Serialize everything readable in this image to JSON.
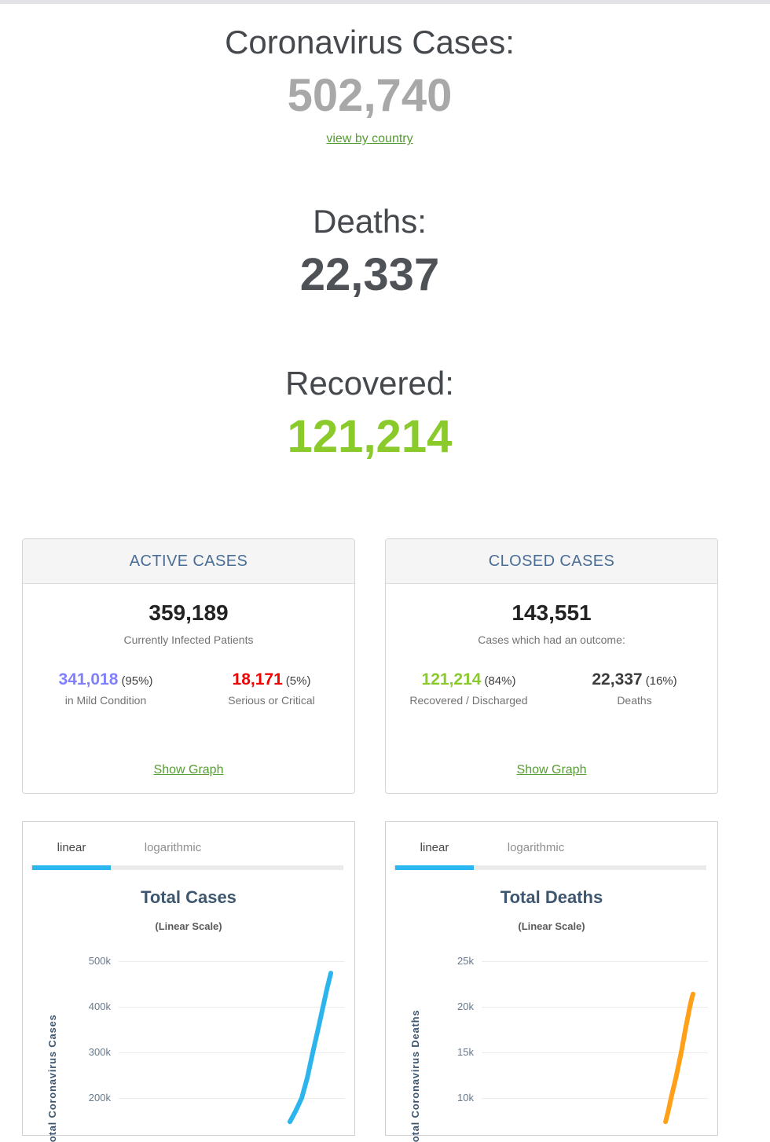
{
  "summary": {
    "cases": {
      "heading": "Coronavirus Cases:",
      "value": "502,740",
      "link_label": "view by country"
    },
    "deaths": {
      "heading": "Deaths:",
      "value": "22,337"
    },
    "recovered": {
      "heading": "Recovered:",
      "value": "121,214"
    }
  },
  "panels": {
    "active": {
      "title": "ACTIVE CASES",
      "total": "359,189",
      "caption": "Currently Infected Patients",
      "mild_value": "341,018",
      "mild_pct": "(95%)",
      "mild_label": "in Mild Condition",
      "critical_value": "18,171",
      "critical_pct": "(5%)",
      "critical_label": "Serious or Critical",
      "link_label": "Show Graph"
    },
    "closed": {
      "title": "CLOSED CASES",
      "total": "143,551",
      "caption": "Cases which had an outcome:",
      "recovered_value": "121,214",
      "recovered_pct": "(84%)",
      "recovered_label": "Recovered / Discharged",
      "deaths_value": "22,337",
      "deaths_pct": "(16%)",
      "deaths_label": "Deaths",
      "link_label": "Show Graph"
    }
  },
  "chart_data": [
    {
      "type": "line",
      "title": "Total Cases",
      "subtitle": "(Linear Scale)",
      "tabs": [
        "linear",
        "logarithmic"
      ],
      "active_tab": "linear",
      "ylabel": "Total Coronavirus Cases",
      "grid": true,
      "legend": "none",
      "yticks": [
        {
          "label": "500k",
          "value": 500000
        },
        {
          "label": "400k",
          "value": 400000
        },
        {
          "label": "300k",
          "value": 300000
        },
        {
          "label": "200k",
          "value": 200000
        }
      ],
      "series": [
        {
          "name": "Cases",
          "color": "#2cb5ec",
          "points": [
            [
              0.757,
              148000
            ],
            [
              0.783,
              172000
            ],
            [
              0.809,
              200000
            ],
            [
              0.834,
              245000
            ],
            [
              0.858,
              300000
            ],
            [
              0.881,
              350000
            ],
            [
              0.903,
              400000
            ],
            [
              0.921,
              440000
            ],
            [
              0.938,
              474000
            ]
          ]
        }
      ]
    },
    {
      "type": "line",
      "title": "Total Deaths",
      "subtitle": "(Linear Scale)",
      "tabs": [
        "linear",
        "logarithmic"
      ],
      "active_tab": "linear",
      "ylabel": "Total Coronavirus Deaths",
      "grid": true,
      "legend": "none",
      "yticks": [
        {
          "label": "25k",
          "value": 25000
        },
        {
          "label": "20k",
          "value": 20000
        },
        {
          "label": "15k",
          "value": 15000
        },
        {
          "label": "10k",
          "value": 10000
        }
      ],
      "series": [
        {
          "name": "Deaths",
          "color": "#ffa018",
          "points": [
            [
              0.813,
              7400
            ],
            [
              0.825,
              8600
            ],
            [
              0.837,
              10000
            ],
            [
              0.86,
              12400
            ],
            [
              0.882,
              15000
            ],
            [
              0.901,
              17600
            ],
            [
              0.92,
              20000
            ],
            [
              0.928,
              20900
            ],
            [
              0.934,
              21400
            ]
          ]
        }
      ]
    }
  ],
  "colors": {
    "accent_tab": "#2cb6f0",
    "link_green": "#569b33",
    "recovered_green": "#8aca2b",
    "mild_blue": "#8080ff",
    "critical_red": "#f20000",
    "cases_line": "#2cb5ec",
    "deaths_line": "#ffa018"
  }
}
